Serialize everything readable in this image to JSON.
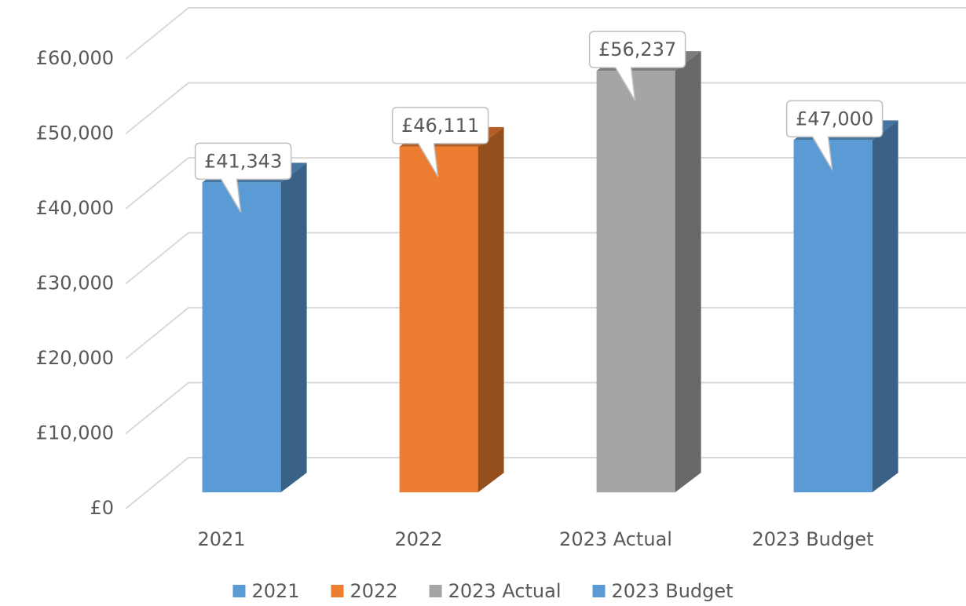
{
  "chart_data": {
    "type": "bar3d",
    "categories": [
      "2021",
      "2022",
      "2023 Actual",
      "2023 Budget"
    ],
    "values": [
      41343,
      46111,
      56237,
      47000
    ],
    "value_labels": [
      "£41,343",
      "£46,111",
      "£56,237",
      "£47,000"
    ],
    "colors": [
      "#5b9bd5",
      "#ed7d31",
      "#a5a5a5",
      "#5b9bd5"
    ],
    "ylim": [
      0,
      60000
    ],
    "yticks": [
      {
        "value": 0,
        "label": "£0"
      },
      {
        "value": 10000,
        "label": "£10,000"
      },
      {
        "value": 20000,
        "label": "£20,000"
      },
      {
        "value": 30000,
        "label": "£30,000"
      },
      {
        "value": 40000,
        "label": "£40,000"
      },
      {
        "value": 50000,
        "label": "£50,000"
      },
      {
        "value": 60000,
        "label": "£60,000"
      }
    ],
    "grid": true,
    "legend": "bottom"
  }
}
